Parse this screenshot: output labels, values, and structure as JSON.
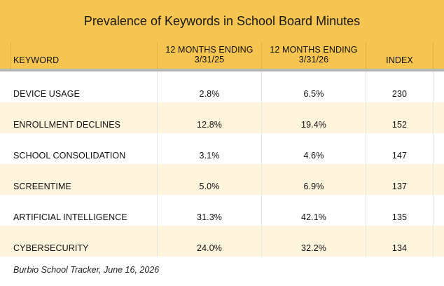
{
  "title": "Prevalence of Keywords in School Board Minutes",
  "header": {
    "keyword": "KEYWORD",
    "period1_line1": "12 MONTHS ENDING",
    "period1_line2": "3/31/25",
    "period2_line1": "12 MONTHS ENDING",
    "period2_line2": "3/31/26",
    "index": "INDEX"
  },
  "rows": [
    {
      "keyword": "DEVICE USAGE",
      "p1": "2.8%",
      "p2": "6.5%",
      "index": "230"
    },
    {
      "keyword": "ENROLLMENT DECLINES",
      "p1": "12.8%",
      "p2": "19.4%",
      "index": "152"
    },
    {
      "keyword": "SCHOOL CONSOLIDATION",
      "p1": "3.1%",
      "p2": "4.6%",
      "index": "147"
    },
    {
      "keyword": "SCREENTIME",
      "p1": "5.0%",
      "p2": "6.9%",
      "index": "137"
    },
    {
      "keyword": "ARTIFICIAL INTELLIGENCE",
      "p1": "31.3%",
      "p2": "42.1%",
      "index": "135"
    },
    {
      "keyword": "CYBERSECURITY",
      "p1": "24.0%",
      "p2": "32.2%",
      "index": "134"
    }
  ],
  "source": "Burbio School Tracker, June 16, 2026",
  "colors": {
    "header_bg": "#f5c451",
    "shade_row": "#fef5dc"
  }
}
